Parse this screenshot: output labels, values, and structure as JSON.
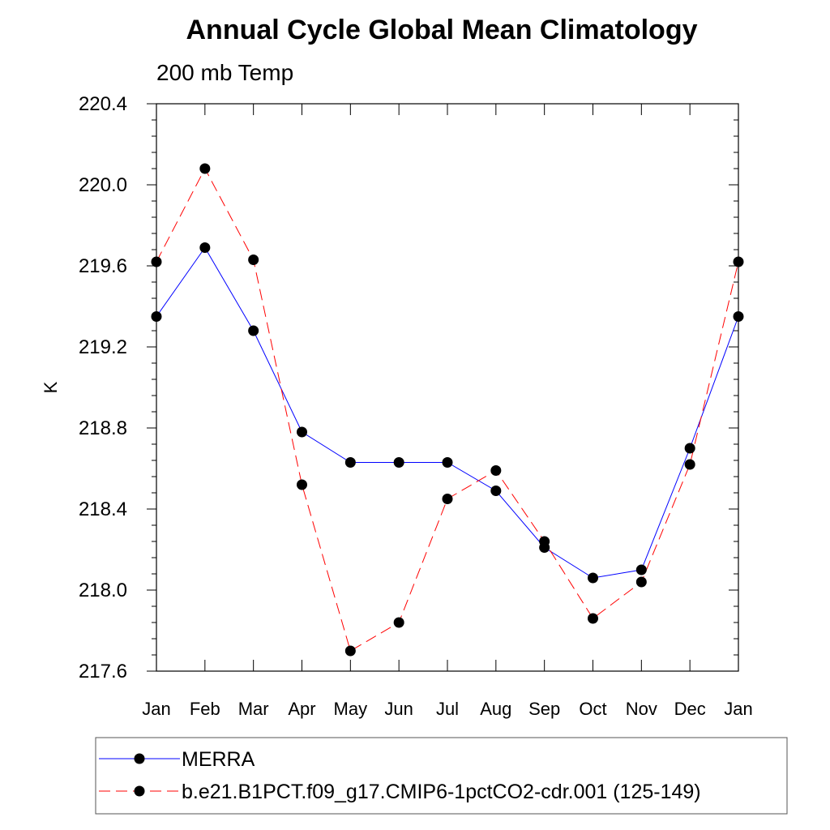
{
  "chart_data": {
    "type": "line",
    "title": "Annual Cycle Global Mean Climatology",
    "subtitle": "200 mb Temp",
    "xlabel": "",
    "ylabel": "K",
    "categories": [
      "Jan",
      "Feb",
      "Mar",
      "Apr",
      "May",
      "Jun",
      "Jul",
      "Aug",
      "Sep",
      "Oct",
      "Nov",
      "Dec",
      "Jan"
    ],
    "ylim": [
      217.6,
      220.4
    ],
    "yticks": [
      "217.6",
      "218.0",
      "218.4",
      "218.8",
      "219.2",
      "219.6",
      "220.0",
      "220.4"
    ],
    "series": [
      {
        "name": "MERRA",
        "color": "#0000ff",
        "style": "solid",
        "values": [
          219.35,
          219.69,
          219.28,
          218.78,
          218.63,
          218.63,
          218.63,
          218.49,
          218.21,
          218.06,
          218.1,
          218.7,
          219.35
        ]
      },
      {
        "name": "b.e21.B1PCT.f09_g17.CMIP6-1pctCO2-cdr.001 (125-149)",
        "color": "#ff0000",
        "style": "dashed",
        "values": [
          219.62,
          220.08,
          219.63,
          218.52,
          217.7,
          217.84,
          218.45,
          218.59,
          218.24,
          217.86,
          218.04,
          218.62,
          219.62
        ]
      }
    ],
    "legend_position": "bottom"
  }
}
